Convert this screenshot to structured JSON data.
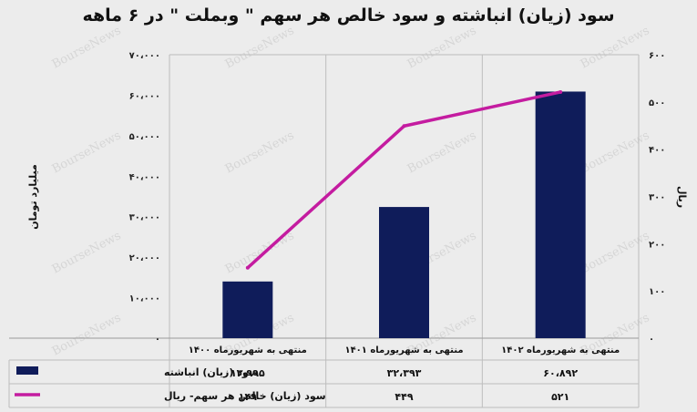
{
  "chart_data": {
    "type": "bar",
    "title": "سود (زیان) انباشته و سود خالص هر سهم \" وبملت \" در ۶ ماهه",
    "categories": [
      "منتهی به شهریورماه ۱۴۰۰",
      "منتهی به شهریورماه ۱۴۰۱",
      "منتهی به شهریورماه ۱۴۰۲"
    ],
    "left_axis": {
      "label": "میلیارد تومان",
      "ylim": [
        0,
        70000
      ],
      "ticks": [
        "۰",
        "۱۰،۰۰۰",
        "۲۰،۰۰۰",
        "۳۰،۰۰۰",
        "۴۰،۰۰۰",
        "۵۰،۰۰۰",
        "۶۰،۰۰۰",
        "۷۰،۰۰۰"
      ]
    },
    "right_axis": {
      "label": "ریال",
      "ylim": [
        0,
        600
      ],
      "ticks": [
        "۰",
        "۱۰۰",
        "۲۰۰",
        "۳۰۰",
        "۴۰۰",
        "۵۰۰",
        "۶۰۰"
      ]
    },
    "series": [
      {
        "name": "سود (زیان) انباشته",
        "type": "bar",
        "axis": "left",
        "color": "#0f1c5a",
        "values": [
          13995,
          32393,
          60892
        ],
        "labels": [
          "۱۳،۹۹۵",
          "۳۲،۳۹۳",
          "۶۰،۸۹۲"
        ]
      },
      {
        "name": "سود (زیان) خالص هر سهم- ریال",
        "type": "line",
        "axis": "right",
        "color": "#c41ca0",
        "values": [
          149,
          449,
          521
        ],
        "labels": [
          "۱۴۹",
          "۴۴۹",
          "۵۲۱"
        ]
      }
    ],
    "grid": true,
    "legend": "data-table"
  },
  "watermark": "BourseNews"
}
